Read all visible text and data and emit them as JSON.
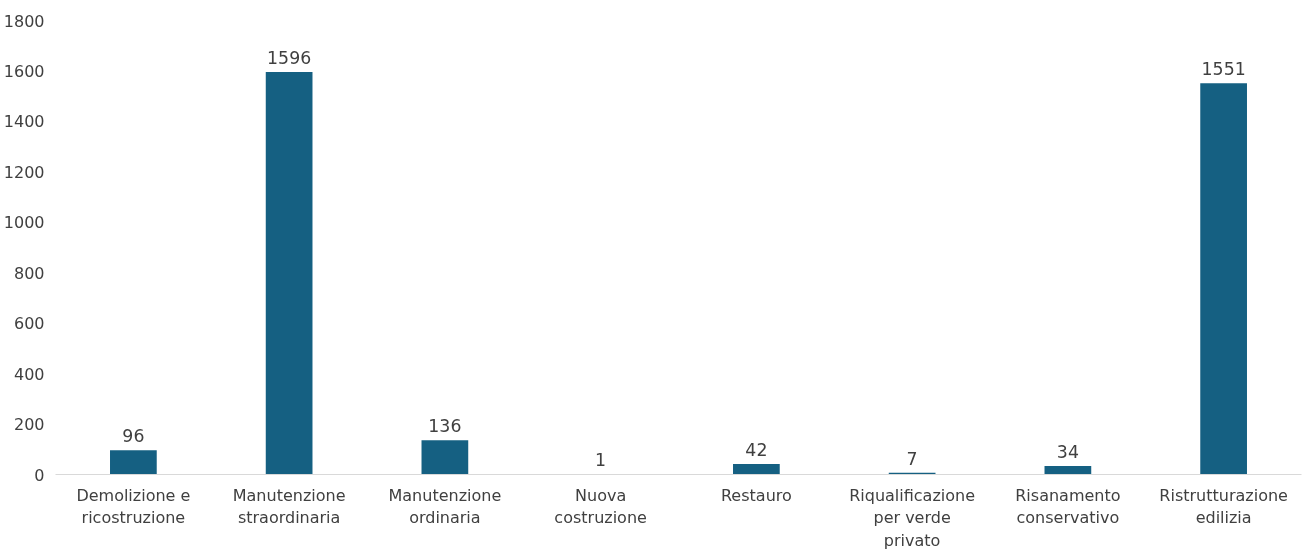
{
  "chart_data": {
    "type": "bar",
    "categories": [
      "Demolizione e ricostruzione",
      "Manutenzione straordinaria",
      "Manutenzione ordinaria",
      "Nuova costruzione",
      "Restauro",
      "Riqualificazione per verde privato",
      "Risanamento conservativo",
      "Ristrutturazione edilizia"
    ],
    "values": [
      96,
      1596,
      136,
      1,
      42,
      7,
      34,
      1551
    ],
    "color": "#156082",
    "ylim": [
      0,
      1800
    ],
    "yticks": [
      0,
      200,
      400,
      600,
      800,
      1000,
      1200,
      1400,
      1600,
      1800
    ],
    "data_labels": true,
    "grid": false
  }
}
